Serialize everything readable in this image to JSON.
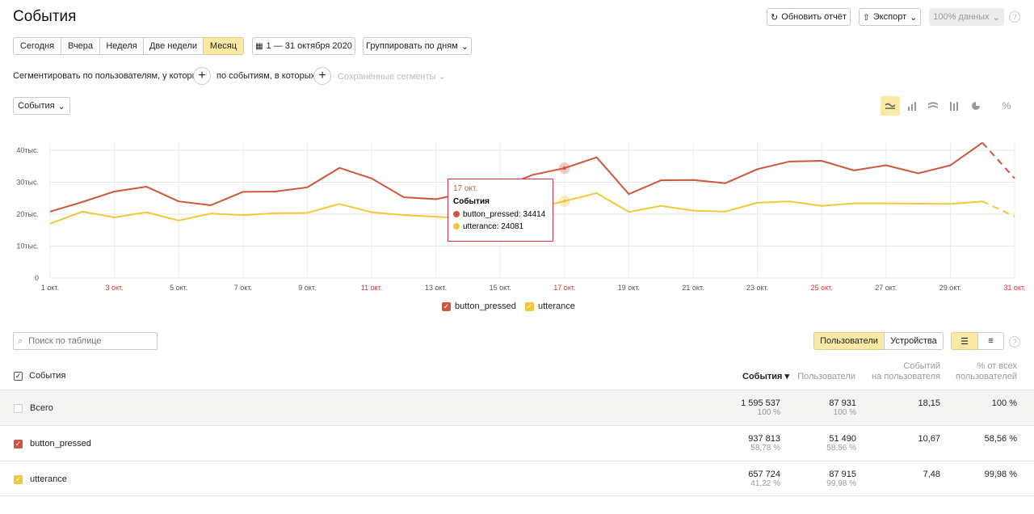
{
  "page": {
    "title": "События"
  },
  "header": {
    "refresh": "Обновить отчёт",
    "export": "Экспорт",
    "data_pct": "100% данных"
  },
  "periods": [
    "Сегодня",
    "Вчера",
    "Неделя",
    "Две недели",
    "Месяц"
  ],
  "period_active": "Месяц",
  "date_range": "1 — 31 октября 2020",
  "group_by": "Группировать по дням",
  "segment": {
    "users_label": "Сегментировать по пользователям, у которых",
    "events_label": "по событиям, в которых",
    "saved": "Сохранённые сегменты"
  },
  "metric_select": "События",
  "chart_icons": {
    "percent": "%"
  },
  "tooltip": {
    "date": "17 окт.",
    "title": "События",
    "row1": "button_pressed: 34414",
    "row2": "utterance: 24081"
  },
  "chart_data": {
    "type": "line",
    "x_labels": [
      "1 окт.",
      "3 окт.",
      "5 окт.",
      "7 окт.",
      "9 окт.",
      "11 окт.",
      "13 окт.",
      "15 окт.",
      "17 окт.",
      "19 окт.",
      "21 окт.",
      "23 окт.",
      "25 окт.",
      "27 окт.",
      "29 окт.",
      "31 окт."
    ],
    "weekend_labels": [
      "3 окт.",
      "11 окт.",
      "17 окт.",
      "25 окт.",
      "31 окт."
    ],
    "y_ticks": [
      "0",
      "10тыс.",
      "20тыс.",
      "30тыс.",
      "40тыс."
    ],
    "ylim": [
      0,
      40000
    ],
    "series": [
      {
        "name": "button_pressed",
        "color": "#d0553c",
        "values": [
          20800,
          23800,
          27100,
          28600,
          24000,
          22800,
          27000,
          27100,
          28400,
          34500,
          31200,
          25300,
          24700,
          26800,
          28200,
          32300,
          34414,
          37800,
          26300,
          30600,
          30700,
          29700,
          34100,
          36500,
          36700,
          33700,
          35300,
          32800,
          35300,
          42400,
          31200
        ]
      },
      {
        "name": "utterance",
        "color": "#f0c93a",
        "values": [
          17000,
          20800,
          19000,
          20600,
          18000,
          20200,
          19700,
          20300,
          20400,
          23200,
          20600,
          19700,
          19200,
          18700,
          19600,
          21700,
          24081,
          26600,
          20700,
          22600,
          21100,
          20800,
          23600,
          24000,
          22600,
          23400,
          23400,
          23300,
          23200,
          24000,
          19300
        ]
      }
    ]
  },
  "table": {
    "search_placeholder": "Поиск по таблице",
    "toggle": [
      "Пользователи",
      "Устройства"
    ],
    "col_name": "События",
    "col_events": "События",
    "col_users": "Пользователи",
    "col_per_user": [
      "Событий",
      "на пользователя"
    ],
    "col_pct": [
      "% от всех",
      "пользователей"
    ],
    "rows": [
      {
        "name": "Всего",
        "events": "1 595 537",
        "events_pct": "100 %",
        "users": "87 931",
        "users_pct": "100 %",
        "per_user": "18,15",
        "pct": "100 %"
      },
      {
        "name": "button_pressed",
        "events": "937 813",
        "events_pct": "58,78 %",
        "users": "51 490",
        "users_pct": "58,56 %",
        "per_user": "10,67",
        "pct": "58,56 %"
      },
      {
        "name": "utterance",
        "events": "657 724",
        "events_pct": "41,22 %",
        "users": "87 915",
        "users_pct": "99,98 %",
        "per_user": "7,48",
        "pct": "99,98 %"
      }
    ]
  }
}
